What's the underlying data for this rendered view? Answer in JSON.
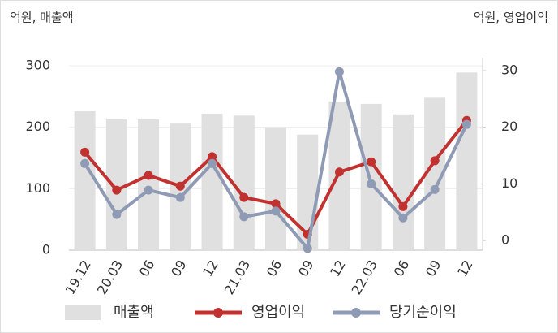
{
  "chart_data": {
    "type": "bar_line",
    "y_label": "억원, 매출액",
    "y2_label": "억원, 영업이익",
    "categories": [
      "19.12",
      "20.03",
      "06",
      "09",
      "12",
      "21.03",
      "06",
      "09",
      "12",
      "22.03",
      "06",
      "09",
      "12"
    ],
    "series": [
      {
        "name": "매출액",
        "color": "#e0e0e0",
        "type": "bar",
        "axis": "y",
        "values": [
          226,
          213,
          213,
          206,
          222,
          219,
          200,
          188,
          242,
          238,
          221,
          248,
          289
        ]
      },
      {
        "name": "영업이익",
        "color": "#c0312f",
        "type": "line",
        "axis": "y2",
        "values": [
          15.6,
          8.9,
          11.5,
          9.6,
          14.8,
          7.6,
          6.5,
          1.1,
          12.1,
          13.9,
          6.0,
          14.1,
          21.2
        ]
      },
      {
        "name": "당기순이익",
        "color": "#8f9ab5",
        "type": "line",
        "axis": "y2",
        "values": [
          13.6,
          4.6,
          8.9,
          7.6,
          13.6,
          4.2,
          5.2,
          -1.4,
          29.8,
          10.0,
          4.0,
          9.0,
          20.5
        ]
      }
    ],
    "ylim": [
      0,
      300
    ],
    "yticks": [
      0,
      100,
      200,
      300
    ],
    "y2lim": [
      -1.7,
      30.85
    ],
    "y2ticks": [
      0,
      10,
      20,
      30
    ],
    "grid": true
  }
}
